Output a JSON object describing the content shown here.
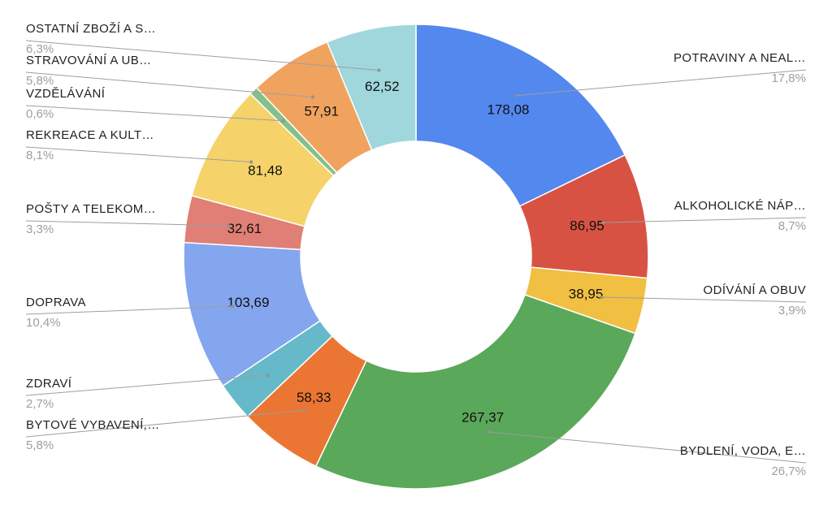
{
  "chart_data": {
    "type": "pie",
    "variant": "donut",
    "title": "",
    "slices": [
      {
        "name": "POTRAVINY A NEAL…",
        "value": 178.08,
        "value_label": "178,08",
        "pct": "17,8%",
        "color": "#5388ee"
      },
      {
        "name": "ALKOHOLICKÉ NÁP…",
        "value": 86.95,
        "value_label": "86,95",
        "pct": "8,7%",
        "color": "#d85244"
      },
      {
        "name": "ODÍVÁNÍ A OBUV",
        "value": 38.95,
        "value_label": "38,95",
        "pct": "3,9%",
        "color": "#f1bf42"
      },
      {
        "name": "BYDLENÍ, VODA, E…",
        "value": 267.37,
        "value_label": "267,37",
        "pct": "26,7%",
        "color": "#5aa85a"
      },
      {
        "name": "BYTOVÉ VYBAVENÍ,…",
        "value": 58.33,
        "value_label": "58,33",
        "pct": "5,8%",
        "color": "#eb7633"
      },
      {
        "name": "ZDRAVÍ",
        "value": 27.0,
        "value_label": "",
        "pct": "2,7%",
        "color": "#66b9c9"
      },
      {
        "name": "DOPRAVA",
        "value": 103.69,
        "value_label": "103,69",
        "pct": "10,4%",
        "color": "#84a6ef"
      },
      {
        "name": "POŠTY A TELEKOM…",
        "value": 32.61,
        "value_label": "32,61",
        "pct": "3,3%",
        "color": "#e07f75"
      },
      {
        "name": "REKREACE A KULT…",
        "value": 81.48,
        "value_label": "81,48",
        "pct": "8,1%",
        "color": "#f5d36a"
      },
      {
        "name": "VZDĚLÁVÁNÍ",
        "value": 6.0,
        "value_label": "",
        "pct": "0,6%",
        "color": "#85c08a"
      },
      {
        "name": "STRAVOVÁNÍ A UB…",
        "value": 57.91,
        "value_label": "57,91",
        "pct": "5,8%",
        "color": "#f0a35f"
      },
      {
        "name": "OSTATNÍ ZBOŽÍ A S…",
        "value": 62.52,
        "value_label": "62,52",
        "pct": "6,3%",
        "color": "#9fd7dc"
      }
    ]
  }
}
